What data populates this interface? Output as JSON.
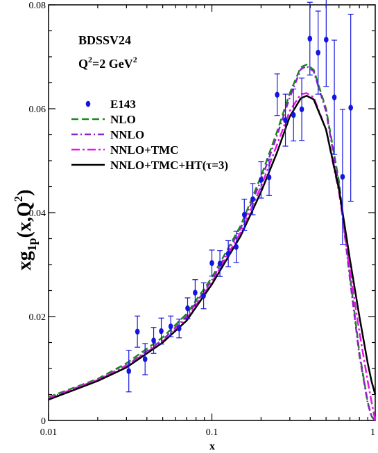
{
  "chart_data": {
    "type": "line",
    "xscale": "log",
    "xlim": [
      0.01,
      1
    ],
    "ylim": [
      0,
      0.08
    ],
    "xlabel": "x",
    "ylabel": {
      "main": "xg",
      "sub1": "1p",
      "paren": "(x,Q",
      "sup": "2",
      "close": ")"
    },
    "annotation": {
      "model": "BDSSV24",
      "q2_prefix": "Q",
      "q2_sup": "2",
      "q2_mid": "=2 GeV",
      "q2_sup2": "2"
    },
    "xticks": [
      {
        "v": 0.01,
        "label": "0.01"
      },
      {
        "v": 0.1,
        "label": "0.1"
      },
      {
        "v": 1,
        "label": "1"
      }
    ],
    "yticks": [
      {
        "v": 0,
        "label": "0"
      },
      {
        "v": 0.02,
        "label": "0.02"
      },
      {
        "v": 0.04,
        "label": "0.04"
      },
      {
        "v": 0.06,
        "label": "0.06"
      },
      {
        "v": 0.08,
        "label": "0.08"
      }
    ],
    "grid": false,
    "legend_position": "top-left",
    "data_points": {
      "name": "E143",
      "color": "#1515dd",
      "points": [
        {
          "x": 0.031,
          "y": 0.0095,
          "err": 0.004
        },
        {
          "x": 0.035,
          "y": 0.0171,
          "err": 0.003
        },
        {
          "x": 0.039,
          "y": 0.0118,
          "err": 0.003
        },
        {
          "x": 0.044,
          "y": 0.0154,
          "err": 0.0025
        },
        {
          "x": 0.049,
          "y": 0.0172,
          "err": 0.0025
        },
        {
          "x": 0.056,
          "y": 0.0181,
          "err": 0.002
        },
        {
          "x": 0.063,
          "y": 0.0177,
          "err": 0.0018
        },
        {
          "x": 0.071,
          "y": 0.0216,
          "err": 0.002
        },
        {
          "x": 0.079,
          "y": 0.0246,
          "err": 0.0025
        },
        {
          "x": 0.089,
          "y": 0.024,
          "err": 0.0025
        },
        {
          "x": 0.1,
          "y": 0.0303,
          "err": 0.0025
        },
        {
          "x": 0.112,
          "y": 0.0302,
          "err": 0.0025
        },
        {
          "x": 0.126,
          "y": 0.0321,
          "err": 0.0025
        },
        {
          "x": 0.141,
          "y": 0.0334,
          "err": 0.003
        },
        {
          "x": 0.158,
          "y": 0.0396,
          "err": 0.003
        },
        {
          "x": 0.178,
          "y": 0.0426,
          "err": 0.003
        },
        {
          "x": 0.2,
          "y": 0.0463,
          "err": 0.0035
        },
        {
          "x": 0.224,
          "y": 0.0468,
          "err": 0.0035
        },
        {
          "x": 0.251,
          "y": 0.0627,
          "err": 0.004
        },
        {
          "x": 0.282,
          "y": 0.0578,
          "err": 0.005
        },
        {
          "x": 0.316,
          "y": 0.0588,
          "err": 0.005
        },
        {
          "x": 0.355,
          "y": 0.0599,
          "err": 0.006
        },
        {
          "x": 0.398,
          "y": 0.0735,
          "err": 0.007
        },
        {
          "x": 0.447,
          "y": 0.0708,
          "err": 0.008
        },
        {
          "x": 0.501,
          "y": 0.0733,
          "err": 0.009
        },
        {
          "x": 0.562,
          "y": 0.0622,
          "err": 0.011
        },
        {
          "x": 0.631,
          "y": 0.0469,
          "err": 0.013
        },
        {
          "x": 0.708,
          "y": 0.0602,
          "err": 0.018
        }
      ]
    },
    "series": [
      {
        "name": "NLO",
        "color": "#1a8a1a",
        "dash": "10,5",
        "width": 2.5,
        "x": [
          0.01,
          0.02,
          0.03,
          0.05,
          0.07,
          0.1,
          0.15,
          0.2,
          0.25,
          0.3,
          0.35,
          0.38,
          0.42,
          0.5,
          0.6,
          0.7,
          0.8,
          0.9,
          0.95,
          1.0
        ],
        "y": [
          0.0045,
          0.008,
          0.011,
          0.016,
          0.0205,
          0.0275,
          0.0375,
          0.047,
          0.0555,
          0.063,
          0.068,
          0.0685,
          0.0675,
          0.06,
          0.046,
          0.028,
          0.013,
          0.0035,
          0.0008,
          0.0
        ]
      },
      {
        "name": "NNLO",
        "color": "#8b22c8",
        "dash": "9,4,2,4",
        "width": 2.5,
        "x": [
          0.01,
          0.02,
          0.03,
          0.05,
          0.07,
          0.1,
          0.15,
          0.2,
          0.25,
          0.3,
          0.35,
          0.38,
          0.42,
          0.5,
          0.6,
          0.7,
          0.8,
          0.9,
          0.95,
          1.0
        ],
        "y": [
          0.0043,
          0.0078,
          0.0106,
          0.0155,
          0.02,
          0.027,
          0.037,
          0.0462,
          0.0548,
          0.0622,
          0.0676,
          0.0682,
          0.0672,
          0.0595,
          0.0452,
          0.0272,
          0.0125,
          0.0033,
          0.0007,
          0.0
        ]
      },
      {
        "name": "NNLO+TMC",
        "color": "#e815e8",
        "dash": "12,4,3,4",
        "width": 2.5,
        "x": [
          0.01,
          0.02,
          0.03,
          0.05,
          0.07,
          0.1,
          0.15,
          0.2,
          0.25,
          0.3,
          0.35,
          0.38,
          0.42,
          0.5,
          0.6,
          0.7,
          0.8,
          0.9,
          0.95,
          1.0
        ],
        "y": [
          0.0043,
          0.0078,
          0.0105,
          0.0152,
          0.0196,
          0.0266,
          0.0362,
          0.045,
          0.053,
          0.0596,
          0.0628,
          0.063,
          0.0622,
          0.056,
          0.044,
          0.029,
          0.017,
          0.0075,
          0.0035,
          0.0
        ]
      },
      {
        "name": "NNLO+TMC+HT(τ=3)",
        "color": "#000000",
        "dash": "",
        "width": 2.5,
        "x": [
          0.01,
          0.02,
          0.03,
          0.05,
          0.07,
          0.1,
          0.15,
          0.2,
          0.25,
          0.3,
          0.35,
          0.38,
          0.42,
          0.5,
          0.6,
          0.7,
          0.8,
          0.9,
          0.95,
          1.0
        ],
        "y": [
          0.004,
          0.0076,
          0.0102,
          0.015,
          0.0192,
          0.0262,
          0.0355,
          0.044,
          0.0515,
          0.0585,
          0.062,
          0.0625,
          0.0618,
          0.056,
          0.0445,
          0.031,
          0.02,
          0.011,
          0.0075,
          0.005
        ]
      }
    ]
  }
}
